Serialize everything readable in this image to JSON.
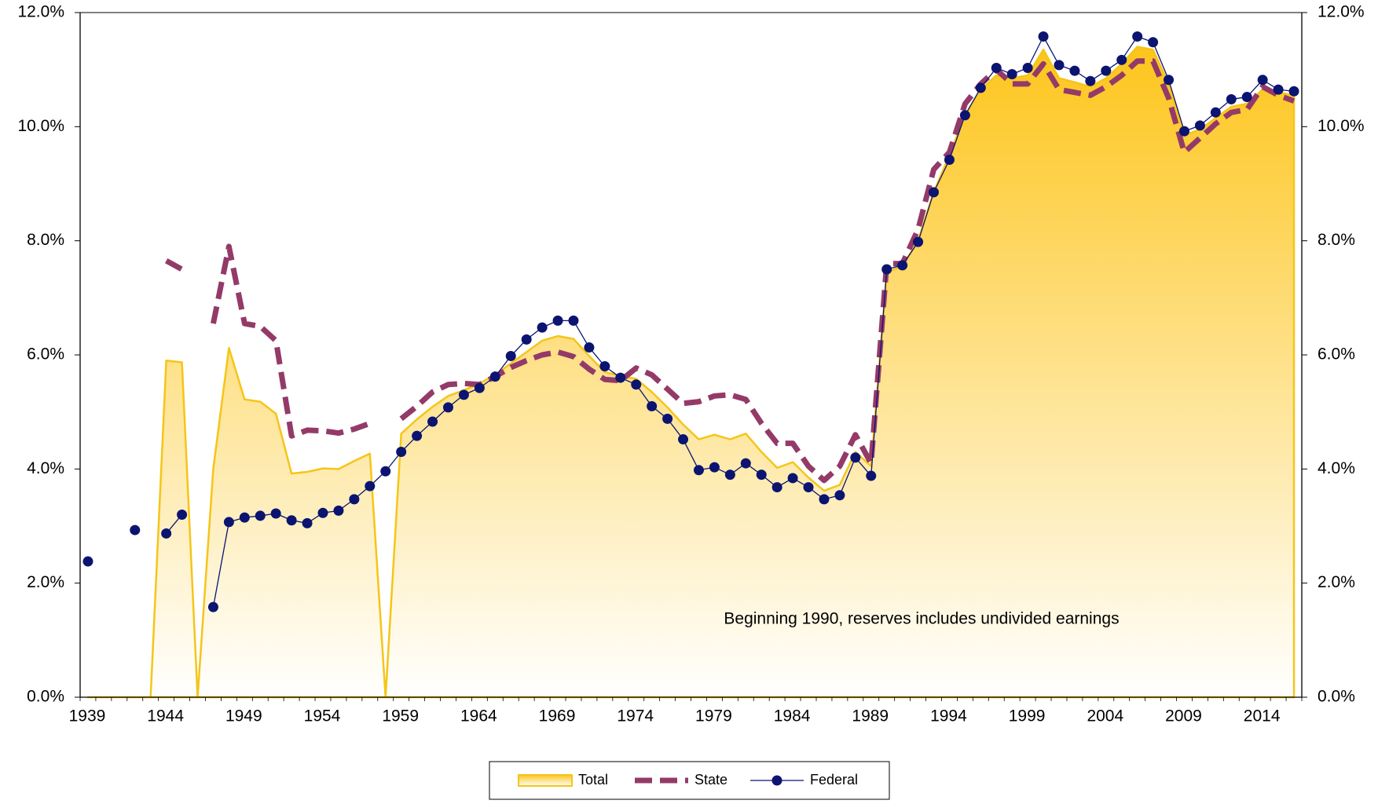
{
  "chart_data": {
    "type": "line",
    "annotation": "Beginning 1990, reserves includes undivided earnings",
    "categories": [
      "1939",
      null,
      null,
      null,
      null,
      "1944",
      null,
      null,
      null,
      null,
      "1949",
      null,
      null,
      null,
      null,
      "1954",
      null,
      null,
      null,
      null,
      "1959",
      null,
      null,
      null,
      null,
      "1964",
      null,
      null,
      null,
      null,
      "1969",
      null,
      null,
      null,
      null,
      "1974",
      null,
      null,
      null,
      null,
      "1979",
      null,
      null,
      null,
      null,
      "1984",
      null,
      null,
      null,
      null,
      "1989",
      null,
      null,
      null,
      null,
      "1994",
      null,
      null,
      null,
      null,
      "1999",
      null,
      null,
      null,
      null,
      "2004",
      null,
      null,
      null,
      null,
      "2009",
      null,
      null,
      null,
      null,
      "2014",
      null,
      null
    ],
    "ylim": [
      0,
      12
    ],
    "yticks": [
      {
        "value": 0,
        "label": "0.0%"
      },
      {
        "value": 2,
        "label": "2.0%"
      },
      {
        "value": 4,
        "label": "4.0%"
      },
      {
        "value": 6,
        "label": "6.0%"
      },
      {
        "value": 8,
        "label": "8.0%"
      },
      {
        "value": 10,
        "label": "10.0%"
      },
      {
        "value": 12,
        "label": "12.0%"
      }
    ],
    "y2lim": [
      0,
      12
    ],
    "y2ticks": [
      {
        "value": 0,
        "label": "0.0%"
      },
      {
        "value": 2,
        "label": "2.0%"
      },
      {
        "value": 4,
        "label": "4.0%"
      },
      {
        "value": 6,
        "label": "6.0%"
      },
      {
        "value": 8,
        "label": "8.0%"
      },
      {
        "value": 10,
        "label": "10.0%"
      },
      {
        "value": 12,
        "label": "12.0%"
      }
    ],
    "legend": "bottom",
    "series": [
      {
        "name": "Total",
        "type": "area",
        "color": "#f5c518",
        "values": [
          0,
          0,
          0,
          0,
          0,
          5.9,
          5.87,
          0,
          4.0,
          6.12,
          5.22,
          5.18,
          4.97,
          3.92,
          3.95,
          4.01,
          4.0,
          4.14,
          4.27,
          0,
          4.62,
          4.87,
          5.09,
          5.28,
          5.38,
          5.5,
          5.65,
          5.85,
          6.05,
          6.25,
          6.33,
          6.28,
          5.98,
          5.7,
          5.63,
          5.58,
          5.35,
          5.08,
          4.78,
          4.52,
          4.6,
          4.52,
          4.62,
          4.3,
          4.02,
          4.12,
          3.85,
          3.62,
          3.72,
          4.3,
          4.05,
          7.45,
          7.55,
          8.0,
          8.85,
          9.5,
          10.2,
          10.65,
          10.9,
          10.85,
          10.9,
          11.35,
          10.85,
          10.78,
          10.7,
          10.85,
          11.1,
          11.4,
          11.35,
          10.75,
          9.85,
          9.95,
          10.15,
          10.35,
          10.4,
          10.65,
          10.6,
          10.55
        ]
      },
      {
        "name": "State",
        "type": "dashed",
        "color": "#943a68",
        "values": [
          null,
          null,
          null,
          null,
          null,
          7.65,
          7.5,
          null,
          6.55,
          7.9,
          6.55,
          6.5,
          6.25,
          4.58,
          4.68,
          4.67,
          4.63,
          4.7,
          4.8,
          null,
          4.88,
          5.1,
          5.35,
          5.48,
          5.5,
          5.48,
          5.62,
          5.78,
          5.9,
          6.0,
          6.05,
          5.97,
          5.75,
          5.57,
          5.55,
          5.77,
          5.65,
          5.4,
          5.15,
          5.18,
          5.28,
          5.3,
          5.22,
          4.8,
          4.45,
          4.45,
          4.05,
          3.8,
          4.05,
          4.6,
          4.1,
          7.6,
          7.6,
          8.2,
          9.25,
          9.55,
          10.4,
          10.75,
          11.0,
          10.75,
          10.75,
          11.1,
          10.65,
          10.6,
          10.55,
          10.7,
          10.9,
          11.15,
          11.15,
          10.5,
          9.55,
          9.8,
          10.05,
          10.25,
          10.3,
          10.7,
          10.55,
          10.45
        ]
      },
      {
        "name": "Federal",
        "type": "marker-line",
        "color": "#0b1470",
        "values": [
          2.38,
          null,
          null,
          2.93,
          null,
          2.87,
          3.2,
          null,
          1.58,
          3.07,
          3.15,
          3.18,
          3.22,
          3.1,
          3.05,
          3.23,
          3.27,
          3.47,
          3.7,
          3.96,
          4.3,
          4.58,
          4.83,
          5.08,
          5.3,
          5.42,
          5.62,
          5.98,
          6.27,
          6.48,
          6.6,
          6.6,
          6.13,
          5.8,
          5.6,
          5.48,
          5.1,
          4.88,
          4.52,
          3.98,
          4.03,
          3.9,
          4.1,
          3.9,
          3.68,
          3.84,
          3.68,
          3.47,
          3.54,
          4.2,
          3.88,
          7.5,
          7.57,
          7.98,
          8.85,
          9.42,
          10.2,
          10.68,
          11.03,
          10.92,
          11.03,
          11.58,
          11.08,
          10.98,
          10.8,
          10.98,
          11.17,
          11.58,
          11.48,
          10.82,
          9.92,
          10.02,
          10.25,
          10.48,
          10.52,
          10.82,
          10.65,
          10.62
        ]
      }
    ]
  }
}
